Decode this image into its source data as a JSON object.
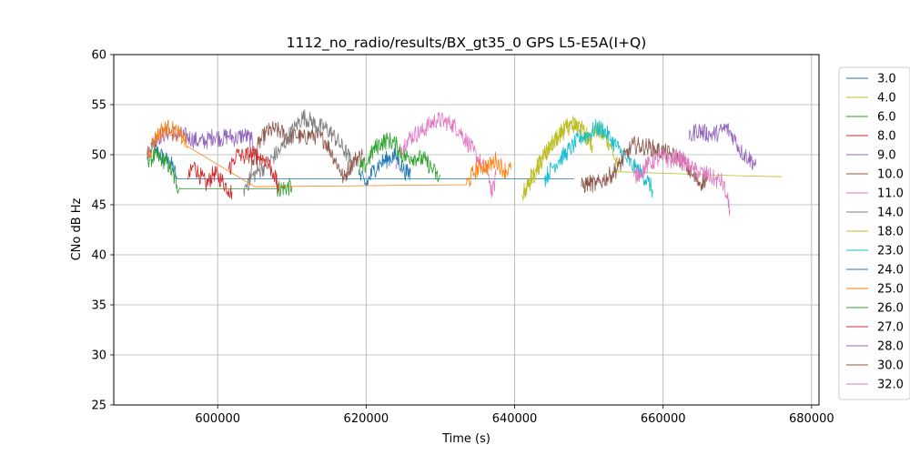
{
  "chart_data": {
    "type": "line",
    "title": "1112_no_radio/results/BX_gt35_0 GPS L5-E5A(I+Q)",
    "xlabel": "Time (s)",
    "ylabel": "CNo dB Hz",
    "xlim": [
      586000,
      681000
    ],
    "ylim": [
      25,
      60
    ],
    "xticks": [
      600000,
      620000,
      640000,
      660000,
      680000
    ],
    "yticks": [
      25,
      30,
      35,
      40,
      45,
      50,
      55,
      60
    ],
    "grid": true,
    "legend_position": "right",
    "series": [
      {
        "name": "3.0",
        "color": "#1f77b4",
        "points": [
          [
            591000,
            51
          ],
          [
            592000,
            50.2
          ],
          [
            593000,
            49.5
          ],
          [
            594000,
            48.8
          ],
          [
            594500,
            47.6
          ],
          [
            626000,
            47.6
          ],
          [
            648000,
            47.6
          ]
        ]
      },
      {
        "name": "4.0",
        "color": "#bcbd22",
        "points": [
          [
            641200,
            46
          ],
          [
            642000,
            47.5
          ],
          [
            643000,
            49
          ],
          [
            644000,
            50
          ],
          [
            645000,
            51
          ],
          [
            646000,
            52
          ],
          [
            647000,
            52.6
          ],
          [
            648000,
            53.2
          ],
          [
            649000,
            52.6
          ],
          [
            650000,
            51.8
          ],
          [
            651000,
            52.5
          ],
          [
            652000,
            51.8
          ],
          [
            653000,
            51
          ],
          [
            653500,
            49.5
          ],
          [
            654000,
            48.3
          ],
          [
            670000,
            47.9
          ],
          [
            676000,
            47.8
          ]
        ]
      },
      {
        "name": "6.0",
        "color": "#2ca02c",
        "points": [
          [
            590500,
            49.5
          ],
          [
            591500,
            49.8
          ],
          [
            592500,
            49.6
          ],
          [
            593500,
            48.8
          ],
          [
            594500,
            47
          ],
          [
            595000,
            46.6
          ],
          [
            608000,
            46.6
          ],
          [
            610000,
            46.8
          ]
        ]
      },
      {
        "name": "8.0",
        "color": "#d62728",
        "points": [
          [
            596000,
            47.5
          ],
          [
            596800,
            49
          ],
          [
            597500,
            48
          ],
          [
            598500,
            47
          ],
          [
            599500,
            48.2
          ],
          [
            600500,
            47.5
          ],
          [
            601500,
            46.5
          ],
          [
            602000,
            46.2
          ]
        ]
      },
      {
        "name": "9.0",
        "color": "#9467bd",
        "points": [
          [
            590500,
            50
          ],
          [
            591500,
            51.5
          ],
          [
            592500,
            52
          ],
          [
            593500,
            52.3
          ],
          [
            594500,
            52
          ],
          [
            595500,
            51.9
          ],
          [
            596500,
            51.6
          ],
          [
            597500,
            51.3
          ],
          [
            598500,
            51.4
          ],
          [
            599500,
            51.9
          ],
          [
            600500,
            51.6
          ],
          [
            601500,
            51.9
          ],
          [
            602500,
            51.6
          ],
          [
            603500,
            52
          ],
          [
            604500,
            51.5
          ],
          [
            605000,
            50.5
          ],
          [
            605500,
            48.5
          ]
        ]
      },
      {
        "name": "10.0",
        "color": "#8c564b",
        "points": [
          [
            604000,
            47
          ],
          [
            604800,
            49.5
          ],
          [
            605500,
            51
          ],
          [
            606500,
            52.2
          ],
          [
            607500,
            52.5
          ],
          [
            608500,
            52.3
          ],
          [
            609500,
            51.7
          ],
          [
            610500,
            52
          ],
          [
            611500,
            51.6
          ],
          [
            612500,
            52
          ],
          [
            613500,
            51.8
          ],
          [
            614500,
            51.4
          ],
          [
            615500,
            50
          ],
          [
            616500,
            48.5
          ],
          [
            617000,
            47.5
          ],
          [
            617500,
            48.5
          ],
          [
            618500,
            49.5
          ],
          [
            619500,
            50
          ]
        ]
      },
      {
        "name": "11.0",
        "color": "#e377c2",
        "points": [
          [
            624000,
            49
          ],
          [
            624500,
            50.3
          ],
          [
            625500,
            51.5
          ],
          [
            626500,
            52
          ],
          [
            627500,
            52.3
          ],
          [
            628500,
            53
          ],
          [
            629500,
            53.5
          ],
          [
            630500,
            53.3
          ],
          [
            631500,
            53.1
          ],
          [
            632500,
            52.5
          ],
          [
            633500,
            51.4
          ],
          [
            634500,
            50.3
          ],
          [
            635500,
            49.1
          ],
          [
            636500,
            48
          ],
          [
            637000,
            46
          ],
          [
            637500,
            48
          ]
        ]
      },
      {
        "name": "14.0",
        "color": "#7f7f7f",
        "points": [
          [
            603500,
            46.5
          ],
          [
            604500,
            47.7
          ],
          [
            605500,
            48.4
          ],
          [
            606500,
            48.9
          ],
          [
            607500,
            49.8
          ],
          [
            608500,
            50.5
          ],
          [
            609500,
            51.8
          ],
          [
            610500,
            52.8
          ],
          [
            611500,
            53.8
          ],
          [
            612500,
            53.4
          ],
          [
            613500,
            52.8
          ],
          [
            614500,
            52.7
          ],
          [
            615500,
            52
          ],
          [
            616500,
            51
          ],
          [
            617500,
            50
          ],
          [
            618000,
            49.2
          ]
        ]
      },
      {
        "name": "18.0",
        "color": "#bcbd22",
        "points": [
          [
            641000,
            46
          ],
          [
            642000,
            47.2
          ],
          [
            643000,
            48.5
          ],
          [
            644000,
            50
          ],
          [
            645000,
            51
          ],
          [
            646000,
            52
          ],
          [
            647000,
            52.8
          ],
          [
            648000,
            53
          ],
          [
            649000,
            52.5
          ],
          [
            650000,
            51.5
          ],
          [
            650500,
            51
          ]
        ]
      },
      {
        "name": "23.0",
        "color": "#17becf",
        "points": [
          [
            644000,
            47.5
          ],
          [
            645000,
            48.7
          ],
          [
            646000,
            49.5
          ],
          [
            647000,
            50.2
          ],
          [
            648000,
            51
          ],
          [
            649000,
            51.8
          ],
          [
            650000,
            52
          ],
          [
            651000,
            52.7
          ],
          [
            652000,
            52.5
          ],
          [
            653000,
            51.5
          ],
          [
            654000,
            50.6
          ],
          [
            655000,
            49.6
          ],
          [
            656000,
            48.8
          ],
          [
            657000,
            48.2
          ],
          [
            658000,
            47.3
          ],
          [
            658600,
            46.4
          ]
        ]
      },
      {
        "name": "24.0",
        "color": "#1f77b4",
        "points": [
          [
            619000,
            48
          ],
          [
            620000,
            47
          ],
          [
            621000,
            48.5
          ],
          [
            622000,
            49.2
          ],
          [
            623000,
            49.6
          ],
          [
            624000,
            49.9
          ],
          [
            625000,
            48.5
          ],
          [
            625800,
            48
          ],
          [
            626000,
            48.5
          ]
        ]
      },
      {
        "name": "25.0",
        "color": "#ff7f0e",
        "points": [
          [
            590500,
            50
          ],
          [
            591500,
            51.5
          ],
          [
            592500,
            52.5
          ],
          [
            593500,
            52.7
          ],
          [
            594500,
            52.2
          ],
          [
            595500,
            51.5
          ],
          [
            596000,
            50.8
          ],
          [
            605000,
            46.8
          ],
          [
            633500,
            47
          ],
          [
            634500,
            48.2
          ],
          [
            635500,
            48.9
          ],
          [
            636500,
            48.8
          ],
          [
            637500,
            49.5
          ],
          [
            638500,
            48.5
          ],
          [
            639500,
            48.5
          ]
        ]
      },
      {
        "name": "26.0",
        "color": "#2ca02c",
        "points": [
          [
            619000,
            48.5
          ],
          [
            620000,
            49
          ],
          [
            621000,
            50.5
          ],
          [
            622000,
            51.2
          ],
          [
            623000,
            51.5
          ],
          [
            624000,
            51
          ],
          [
            625000,
            49.8
          ],
          [
            626000,
            49.8
          ],
          [
            627000,
            49.7
          ],
          [
            628000,
            49.4
          ],
          [
            629000,
            48.5
          ],
          [
            629800,
            47.5
          ],
          [
            630000,
            48
          ]
        ]
      },
      {
        "name": "27.0",
        "color": "#d62728",
        "points": [
          [
            601500,
            48.5
          ],
          [
            602500,
            50
          ],
          [
            603500,
            49.8
          ],
          [
            604500,
            50.1
          ],
          [
            605500,
            49.8
          ],
          [
            606500,
            49.5
          ],
          [
            607500,
            48.2
          ],
          [
            608300,
            46.5
          ]
        ]
      },
      {
        "name": "28.0",
        "color": "#9467bd",
        "points": [
          [
            663500,
            51.5
          ],
          [
            664500,
            52.5
          ],
          [
            665500,
            52.2
          ],
          [
            666500,
            52
          ],
          [
            667500,
            52.2
          ],
          [
            668500,
            52.7
          ],
          [
            669500,
            51.8
          ],
          [
            670500,
            50.3
          ],
          [
            671500,
            49.7
          ],
          [
            672500,
            49
          ]
        ]
      },
      {
        "name": "30.0",
        "color": "#8c564b",
        "points": [
          [
            649000,
            46.8
          ],
          [
            650000,
            47.2
          ],
          [
            651000,
            47
          ],
          [
            652000,
            47.5
          ],
          [
            653000,
            48
          ],
          [
            654000,
            48.8
          ],
          [
            655000,
            50
          ],
          [
            656000,
            51
          ],
          [
            657000,
            50.8
          ],
          [
            658000,
            50.8
          ],
          [
            659000,
            50.5
          ],
          [
            660000,
            50.3
          ],
          [
            661000,
            50
          ],
          [
            662000,
            49.7
          ],
          [
            663000,
            49.1
          ],
          [
            664000,
            47.8
          ],
          [
            665000,
            47.2
          ],
          [
            666000,
            47.6
          ]
        ]
      },
      {
        "name": "32.0",
        "color": "#e377c2",
        "points": [
          [
            656000,
            47.8
          ],
          [
            657000,
            48.3
          ],
          [
            658000,
            49
          ],
          [
            659000,
            49.5
          ],
          [
            660000,
            49.7
          ],
          [
            661000,
            49.4
          ],
          [
            662000,
            49.8
          ],
          [
            663000,
            49.2
          ],
          [
            664000,
            48.5
          ],
          [
            665000,
            48.2
          ],
          [
            666000,
            48
          ],
          [
            667000,
            47.5
          ],
          [
            668000,
            47.3
          ],
          [
            668500,
            46
          ],
          [
            669000,
            44.5
          ]
        ]
      }
    ]
  }
}
